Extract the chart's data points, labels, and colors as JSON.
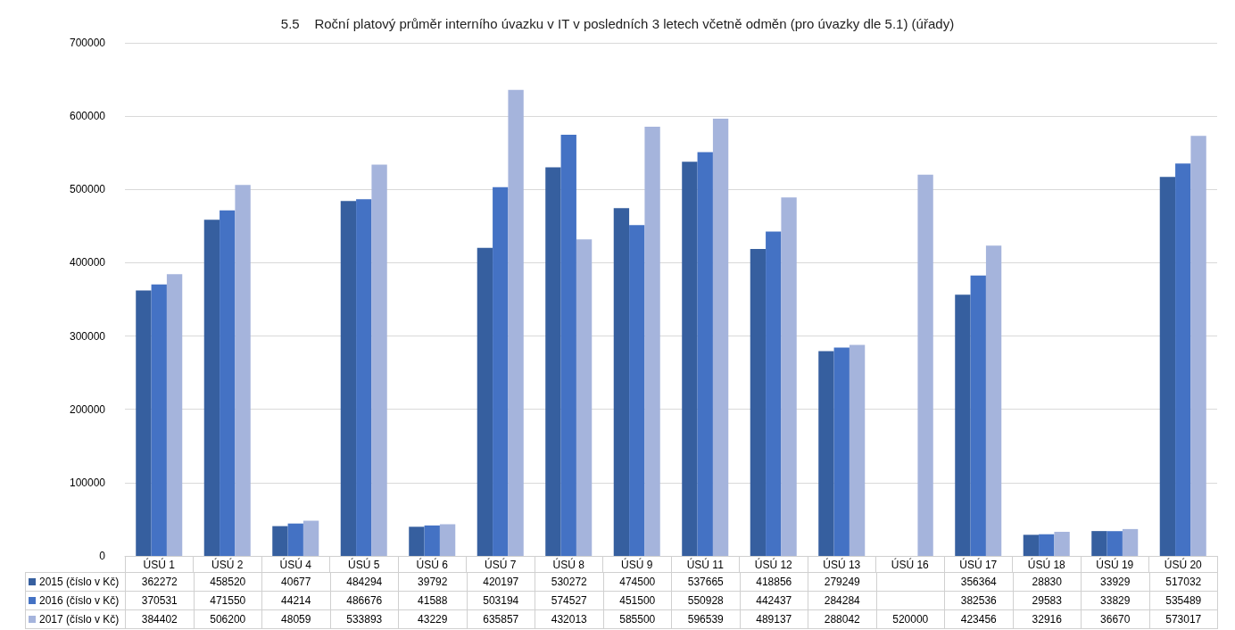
{
  "chart_data": {
    "type": "bar",
    "title": "5.5    Roční platový průměr interního úvazku v IT v posledních 3 letech včetně odměn (pro úvazky dle 5.1) (úřady)",
    "categories": [
      "ÚSÚ 1",
      "ÚSÚ 2",
      "ÚSÚ 4",
      "ÚSÚ 5",
      "ÚSÚ 6",
      "ÚSÚ 7",
      "ÚSÚ 8",
      "ÚSÚ 9",
      "ÚSÚ 11",
      "ÚSÚ 12",
      "ÚSÚ 13",
      "ÚSÚ 16",
      "ÚSÚ 17",
      "ÚSÚ 18",
      "ÚSÚ 19",
      "ÚSÚ 20"
    ],
    "series": [
      {
        "name": "2015 (číslo v Kč)",
        "color": "#365f9f",
        "values": [
          362272,
          458520,
          40677,
          484294,
          39792,
          420197,
          530272,
          474500,
          537665,
          418856,
          279249,
          null,
          356364,
          28830,
          33929,
          517032
        ]
      },
      {
        "name": "2016 (číslo v Kč)",
        "color": "#4472c4",
        "values": [
          370531,
          471550,
          44214,
          486676,
          41588,
          503194,
          574527,
          451500,
          550928,
          442437,
          284284,
          null,
          382536,
          29583,
          33829,
          535489
        ]
      },
      {
        "name": "2017 (číslo v Kč)",
        "color": "#a5b4dc",
        "values": [
          384402,
          506200,
          48059,
          533893,
          43229,
          635857,
          432013,
          585500,
          596539,
          489137,
          288042,
          520000,
          423456,
          32916,
          36670,
          573017
        ]
      }
    ],
    "ylim": [
      0,
      700000
    ],
    "yticks": [
      0,
      100000,
      200000,
      300000,
      400000,
      500000,
      600000,
      700000
    ],
    "grid": "y",
    "legend": "bottom",
    "data_labels": true
  }
}
